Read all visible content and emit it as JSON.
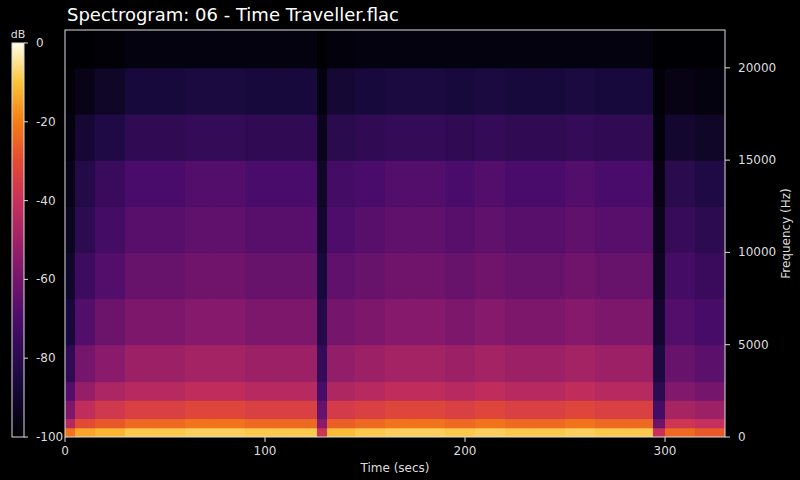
{
  "chart_data": {
    "type": "heatmap",
    "title": "Spectrogram: 06 - Time Traveller.flac",
    "x_label": "Time (secs)",
    "y_label": "Frequency (Hz)",
    "xlim": [
      0,
      330
    ],
    "ylim": [
      0,
      22050
    ],
    "xticks": [
      0,
      100,
      200,
      300
    ],
    "yticks": [
      0,
      5000,
      10000,
      15000,
      20000
    ],
    "x_edges": [
      0,
      5,
      15,
      30,
      45,
      60,
      75,
      90,
      105,
      120,
      126,
      131,
      145,
      160,
      175,
      190,
      205,
      220,
      235,
      250,
      265,
      280,
      294,
      300,
      315,
      330
    ],
    "y_edges": [
      0,
      500,
      1000,
      2000,
      3000,
      5000,
      7500,
      10000,
      12500,
      15000,
      17500,
      20000,
      22050
    ],
    "cells": [
      [
        -22,
        -14,
        -12,
        -9,
        -9,
        -8,
        -8,
        -9,
        -9,
        -9,
        -38,
        -11,
        -9,
        -8,
        -8,
        -9,
        -8,
        -9,
        -9,
        -8,
        -9,
        -9,
        -40,
        -24,
        -27
      ],
      [
        -45,
        -30,
        -27,
        -24,
        -24,
        -22,
        -22,
        -24,
        -24,
        -24,
        -55,
        -26,
        -24,
        -22,
        -22,
        -24,
        -22,
        -24,
        -24,
        -22,
        -24,
        -24,
        -62,
        -38,
        -41
      ],
      [
        -58,
        -42,
        -37,
        -34,
        -34,
        -32,
        -32,
        -34,
        -34,
        -34,
        -64,
        -36,
        -34,
        -32,
        -32,
        -34,
        -32,
        -34,
        -34,
        -32,
        -34,
        -34,
        -72,
        -48,
        -51
      ],
      [
        -68,
        -52,
        -47,
        -44,
        -44,
        -42,
        -42,
        -44,
        -44,
        -44,
        -71,
        -46,
        -44,
        -42,
        -42,
        -44,
        -42,
        -44,
        -44,
        -42,
        -44,
        -44,
        -79,
        -57,
        -60
      ],
      [
        -78,
        -60,
        -55,
        -51,
        -51,
        -49,
        -49,
        -51,
        -51,
        -51,
        -77,
        -53,
        -51,
        -49,
        -49,
        -51,
        -49,
        -51,
        -51,
        -49,
        -51,
        -51,
        -85,
        -63,
        -66
      ],
      [
        -86,
        -68,
        -62,
        -58,
        -58,
        -56,
        -56,
        -58,
        -58,
        -58,
        -82,
        -60,
        -58,
        -56,
        -56,
        -58,
        -56,
        -58,
        -58,
        -56,
        -58,
        -58,
        -89,
        -68,
        -71
      ],
      [
        -90,
        -74,
        -68,
        -63,
        -63,
        -61,
        -61,
        -63,
        -63,
        -63,
        -86,
        -65,
        -63,
        -61,
        -61,
        -63,
        -61,
        -63,
        -63,
        -61,
        -63,
        -63,
        -92,
        -72,
        -75
      ],
      [
        -93,
        -79,
        -72,
        -67,
        -67,
        -65,
        -65,
        -67,
        -67,
        -67,
        -89,
        -69,
        -67,
        -65,
        -65,
        -67,
        -65,
        -67,
        -67,
        -65,
        -67,
        -67,
        -94,
        -76,
        -79
      ],
      [
        -95,
        -82,
        -75,
        -70,
        -70,
        -68,
        -68,
        -70,
        -70,
        -70,
        -91,
        -72,
        -70,
        -68,
        -68,
        -70,
        -68,
        -70,
        -70,
        -68,
        -70,
        -70,
        -96,
        -80,
        -83
      ],
      [
        -97,
        -88,
        -83,
        -78,
        -78,
        -77,
        -77,
        -78,
        -78,
        -78,
        -94,
        -80,
        -78,
        -77,
        -77,
        -78,
        -77,
        -78,
        -78,
        -77,
        -78,
        -78,
        -98,
        -89,
        -91
      ],
      [
        -99,
        -95,
        -91,
        -86,
        -86,
        -85,
        -85,
        -86,
        -86,
        -86,
        -97,
        -88,
        -86,
        -85,
        -85,
        -86,
        -85,
        -86,
        -86,
        -85,
        -86,
        -86,
        -99,
        -96,
        -97
      ],
      [
        -100,
        -100,
        -99,
        -97,
        -97,
        -97,
        -97,
        -97,
        -97,
        -97,
        -100,
        -98,
        -97,
        -97,
        -97,
        -97,
        -97,
        -97,
        -97,
        -97,
        -97,
        -97,
        -100,
        -100,
        -100
      ]
    ],
    "colorbar_label": "dB",
    "colorbar_range": [
      -100,
      0
    ],
    "colorbar_ticks": [
      0,
      -20,
      -40,
      -60,
      -80,
      -100
    ]
  }
}
